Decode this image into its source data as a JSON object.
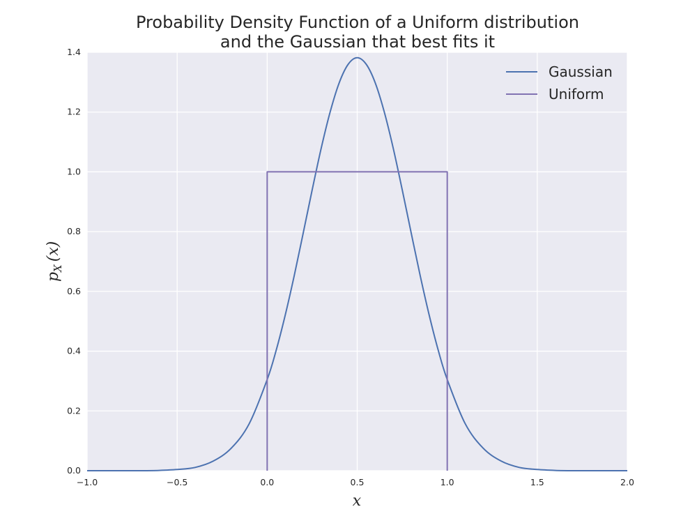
{
  "chart_data": {
    "type": "line",
    "title_lines": [
      "Probability Density Function of a Uniform distribution",
      "and the Gaussian that best fits it"
    ],
    "xlabel": "x",
    "ylabel_main": "p",
    "ylabel_sub": "X",
    "ylabel_arg": "(x)",
    "xlim": [
      -1.0,
      2.0
    ],
    "ylim": [
      0.0,
      1.4
    ],
    "x_ticks": [
      -1.0,
      -0.5,
      0.0,
      0.5,
      1.0,
      1.5,
      2.0
    ],
    "x_tick_labels": [
      "−1.0",
      "−0.5",
      "0.0",
      "0.5",
      "1.0",
      "1.5",
      "2.0"
    ],
    "y_ticks": [
      0.0,
      0.2,
      0.4,
      0.6,
      0.8,
      1.0,
      1.2,
      1.4
    ],
    "y_tick_labels": [
      "0.0",
      "0.2",
      "0.4",
      "0.6",
      "0.8",
      "1.0",
      "1.2",
      "1.4"
    ],
    "grid": true,
    "legend_position": "top-right",
    "series": [
      {
        "name": "Gaussian",
        "color": "#4c72b0",
        "x": [
          -1.0,
          -0.9,
          -0.8,
          -0.7,
          -0.6,
          -0.5,
          -0.4,
          -0.3,
          -0.2,
          -0.1,
          0.0,
          0.05,
          0.1,
          0.15,
          0.2,
          0.25,
          0.3,
          0.35,
          0.4,
          0.45,
          0.5,
          0.55,
          0.6,
          0.65,
          0.7,
          0.75,
          0.8,
          0.85,
          0.9,
          0.95,
          1.0,
          1.1,
          1.2,
          1.3,
          1.4,
          1.5,
          1.6,
          1.7,
          1.8,
          1.9,
          2.0
        ],
        "y": [
          0.0,
          0.0,
          0.0,
          0.0,
          0.001,
          0.004,
          0.011,
          0.032,
          0.075,
          0.157,
          0.305,
          0.403,
          0.52,
          0.652,
          0.795,
          0.94,
          1.079,
          1.201,
          1.298,
          1.36,
          1.382,
          1.36,
          1.298,
          1.201,
          1.079,
          0.94,
          0.795,
          0.652,
          0.52,
          0.403,
          0.305,
          0.157,
          0.075,
          0.032,
          0.011,
          0.004,
          0.001,
          0.0,
          0.0,
          0.0,
          0.0
        ]
      },
      {
        "name": "Uniform",
        "color": "#8172b2",
        "x": [
          0.0,
          0.0,
          1.0,
          1.0
        ],
        "y": [
          0.0,
          1.0,
          1.0,
          0.0
        ]
      }
    ]
  }
}
